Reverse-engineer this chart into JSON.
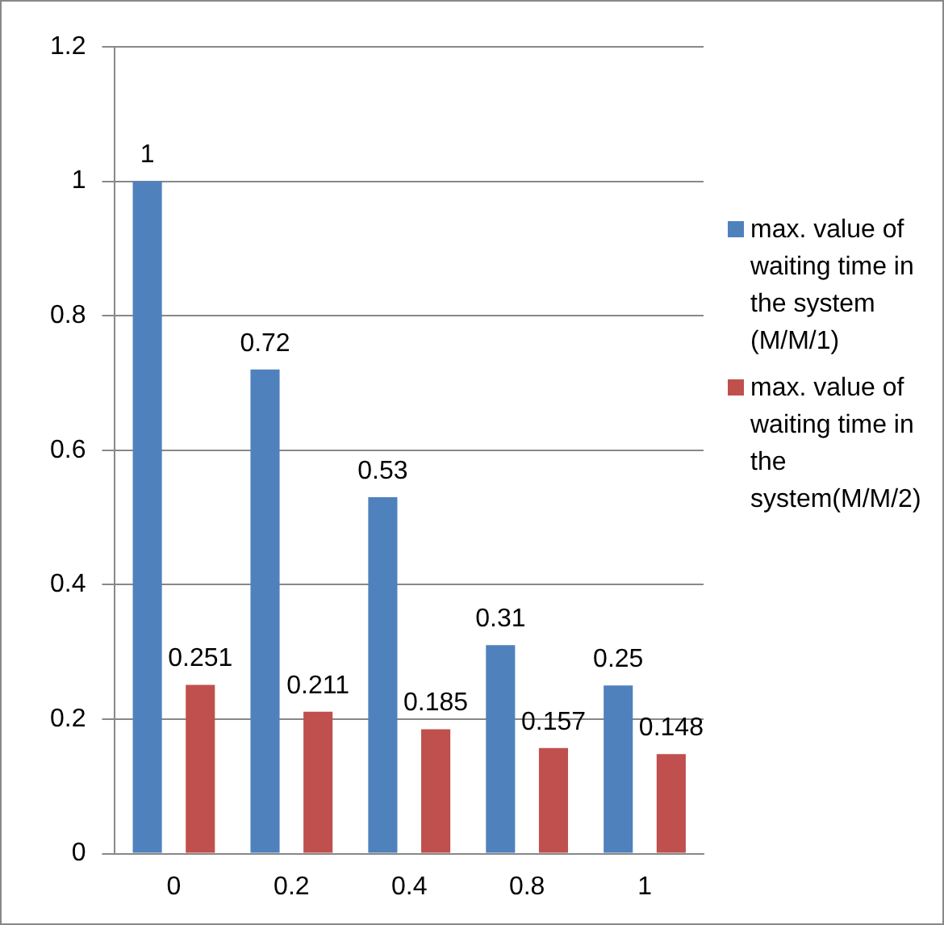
{
  "chart_data": {
    "type": "bar",
    "categories": [
      "0",
      "0.2",
      "0.4",
      "0.8",
      "1"
    ],
    "series": [
      {
        "name": "max. value of waiting time in the system (M/M/1)",
        "color": "#4f81bd",
        "values": [
          1,
          0.72,
          0.53,
          0.31,
          0.25
        ]
      },
      {
        "name": "max. value of waiting time in the system(M/M/2)",
        "color": "#c0504d",
        "values": [
          0.251,
          0.211,
          0.185,
          0.157,
          0.148
        ]
      }
    ],
    "ylim": [
      0,
      1.2
    ],
    "yticks": [
      0,
      0.2,
      0.4,
      0.6,
      0.8,
      1,
      1.2
    ],
    "grid": "y",
    "legend": "right",
    "data_labels": true
  }
}
